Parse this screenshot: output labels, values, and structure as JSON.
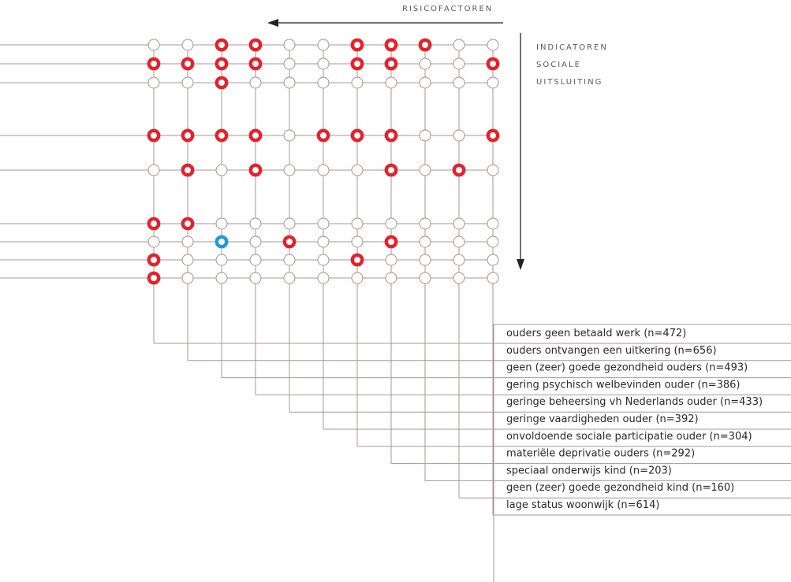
{
  "header": {
    "risk_factors_label": "RISICOFACTOREN",
    "indicators_label_lines": [
      "INDICATOREN",
      "SOCIALE",
      "UITSLUITING"
    ]
  },
  "colors": {
    "line": "#a99595",
    "empty_ring": "#a89090",
    "marked": "#e8202a",
    "highlight": "#1e9ad6",
    "arrow": "#222222",
    "text": "#2a2a2a"
  },
  "risk_factors": [
    "ouders geen betaald werk (n=472)",
    "ouders ontvangen een uitkering (n=656)",
    "geen (zeer) goede gezondheid ouders (n=493)",
    "gering psychisch welbevinden ouder (n=386)",
    "geringe beheersing vh Nederlands ouder (n=433)",
    "geringe vaardigheden ouder (n=392)",
    "onvoldoende sociale participatie ouder (n=304)",
    "materiële deprivatie ouders (n=292)",
    "speciaal onderwijs kind (n=203)",
    "geen (zeer) goede gezondheid kind (n=160)",
    "lage status woonwijk (n=614)"
  ],
  "matrix": {
    "legend": "0 = no relation, 1 = marked (red), 2 = highlighted (blue)",
    "rows": [
      [
        0,
        0,
        1,
        1,
        0,
        0,
        1,
        1,
        1,
        0,
        0
      ],
      [
        1,
        1,
        1,
        1,
        0,
        0,
        1,
        1,
        0,
        0,
        1
      ],
      [
        0,
        0,
        1,
        0,
        0,
        0,
        0,
        0,
        0,
        0,
        0
      ],
      [
        1,
        1,
        1,
        1,
        0,
        1,
        1,
        1,
        0,
        0,
        1
      ],
      [
        0,
        1,
        0,
        1,
        0,
        0,
        0,
        1,
        0,
        1,
        0
      ],
      [
        1,
        1,
        0,
        0,
        0,
        0,
        0,
        0,
        0,
        0,
        0
      ],
      [
        0,
        0,
        2,
        0,
        1,
        0,
        0,
        1,
        0,
        0,
        0
      ],
      [
        1,
        0,
        0,
        0,
        0,
        0,
        1,
        0,
        0,
        0,
        0
      ],
      [
        1,
        0,
        0,
        0,
        0,
        0,
        0,
        0,
        0,
        0,
        0
      ]
    ]
  }
}
